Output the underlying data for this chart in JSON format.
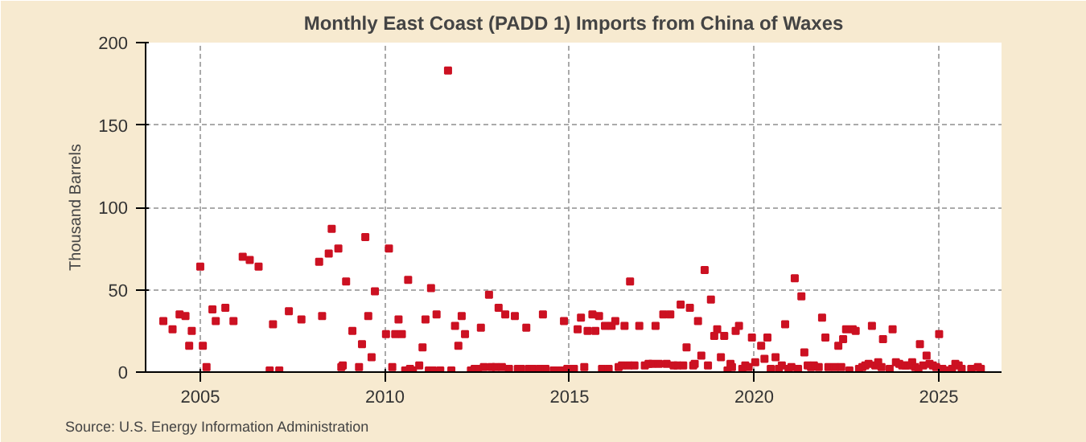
{
  "chart_data": {
    "type": "scatter",
    "title": "Monthly East Coast (PADD 1) Imports from China of Waxes",
    "ylabel": "Thousand Barrels",
    "annotations": [
      "Source: U.S. Energy Information Administration"
    ],
    "xlim": [
      2003.52,
      2026.7
    ],
    "xticks": [
      2005,
      2010,
      2015,
      2020,
      2025
    ],
    "ylim": [
      0,
      200
    ],
    "yticks": [
      0,
      50,
      100,
      150,
      200
    ],
    "grid": true,
    "marker": "square",
    "series": [
      {
        "color": "#cc1122",
        "x": [
          2004.0,
          2004.25,
          2004.44,
          2004.6,
          2004.7,
          2004.77,
          2005.0,
          2005.07,
          2005.17,
          2005.33,
          2005.42,
          2005.68,
          2005.9,
          2006.15,
          2006.34,
          2006.58,
          2006.88,
          2006.97,
          2007.14,
          2007.4,
          2007.74,
          2008.22,
          2008.3,
          2008.48,
          2008.56,
          2008.74,
          2008.82,
          2008.86,
          2008.95,
          2009.12,
          2009.3,
          2009.38,
          2009.47,
          2009.55,
          2009.64,
          2009.73,
          2010.03,
          2010.11,
          2010.2,
          2010.28,
          2010.37,
          2010.46,
          2010.55,
          2010.63,
          2010.68,
          2010.76,
          2010.93,
          2011.02,
          2011.1,
          2011.19,
          2011.25,
          2011.3,
          2011.4,
          2011.5,
          2011.71,
          2011.8,
          2011.9,
          2011.99,
          2012.08,
          2012.17,
          2012.33,
          2012.43,
          2012.52,
          2012.6,
          2012.68,
          2012.82,
          2012.88,
          2013.0,
          2013.08,
          2013.17,
          2013.26,
          2013.36,
          2013.52,
          2013.6,
          2013.69,
          2013.83,
          2013.9,
          2014.0,
          2014.19,
          2014.28,
          2014.35,
          2014.57,
          2014.75,
          2014.85,
          2014.94,
          2015.12,
          2015.22,
          2015.31,
          2015.4,
          2015.49,
          2015.62,
          2015.7,
          2015.8,
          2015.88,
          2015.96,
          2016.06,
          2016.14,
          2016.24,
          2016.33,
          2016.42,
          2016.49,
          2016.6,
          2016.64,
          2016.76,
          2016.89,
          2017.04,
          2017.14,
          2017.24,
          2017.33,
          2017.42,
          2017.54,
          2017.63,
          2017.73,
          2017.82,
          2017.92,
          2018.01,
          2018.08,
          2018.17,
          2018.26,
          2018.35,
          2018.39,
          2018.48,
          2018.57,
          2018.66,
          2018.75,
          2018.83,
          2018.92,
          2019.0,
          2019.1,
          2019.19,
          2019.28,
          2019.36,
          2019.4,
          2019.5,
          2019.59,
          2019.68,
          2019.76,
          2019.85,
          2019.94,
          2020.03,
          2020.19,
          2020.28,
          2020.36,
          2020.45,
          2020.58,
          2020.67,
          2020.75,
          2020.84,
          2020.93,
          2021.01,
          2021.1,
          2021.19,
          2021.28,
          2021.36,
          2021.45,
          2021.54,
          2021.62,
          2021.75,
          2021.84,
          2021.93,
          2022.01,
          2022.19,
          2022.28,
          2022.36,
          2022.41,
          2022.49,
          2022.58,
          2022.67,
          2022.75,
          2022.84,
          2022.93,
          2023.01,
          2023.1,
          2023.19,
          2023.28,
          2023.36,
          2023.45,
          2023.49,
          2023.67,
          2023.75,
          2023.84,
          2023.93,
          2024.01,
          2024.1,
          2024.19,
          2024.28,
          2024.36,
          2024.45,
          2024.49,
          2024.58,
          2024.67,
          2024.75,
          2024.84,
          2024.93,
          2025.01,
          2025.1,
          2025.19,
          2025.36,
          2025.45,
          2025.54,
          2025.62,
          2025.88,
          2026.06,
          2026.14
        ],
        "values": [
          31,
          26,
          35,
          34,
          16,
          25,
          64,
          16,
          3,
          38,
          31,
          39,
          31,
          70,
          68,
          64,
          1,
          29,
          1,
          37,
          32,
          67,
          34,
          72,
          87,
          75,
          3,
          4,
          55,
          25,
          3,
          17,
          82,
          34,
          9,
          49,
          23,
          75,
          3,
          23,
          32,
          23,
          1,
          56,
          2,
          1,
          4,
          15,
          32,
          1,
          51,
          1,
          35,
          1,
          183,
          1,
          28,
          16,
          34,
          23,
          1,
          2,
          2,
          27,
          3,
          47,
          3,
          3,
          39,
          3,
          35,
          2,
          34,
          2,
          2,
          27,
          2,
          2,
          2,
          35,
          2,
          1,
          1,
          31,
          2,
          2,
          26,
          33,
          3,
          25,
          35,
          25,
          34,
          2,
          28,
          2,
          28,
          31,
          3,
          4,
          28,
          4,
          55,
          4,
          28,
          4,
          5,
          5,
          28,
          5,
          35,
          5,
          35,
          4,
          4,
          41,
          4,
          15,
          39,
          4,
          5,
          31,
          10,
          62,
          4,
          44,
          22,
          26,
          9,
          22,
          1,
          5,
          3,
          25,
          28,
          2,
          4,
          3,
          21,
          6,
          16,
          8,
          21,
          2,
          9,
          2,
          4,
          29,
          2,
          3,
          57,
          2,
          46,
          12,
          4,
          3,
          4,
          3,
          33,
          21,
          3,
          3,
          16,
          3,
          20,
          26,
          1,
          26,
          25,
          2,
          3,
          4,
          5,
          28,
          4,
          6,
          3,
          20,
          2,
          26,
          6,
          5,
          4,
          4,
          4,
          6,
          3,
          2,
          17,
          4,
          10,
          5,
          4,
          3,
          23,
          2,
          1,
          2,
          5,
          4,
          2,
          2,
          3,
          2
        ]
      }
    ]
  }
}
